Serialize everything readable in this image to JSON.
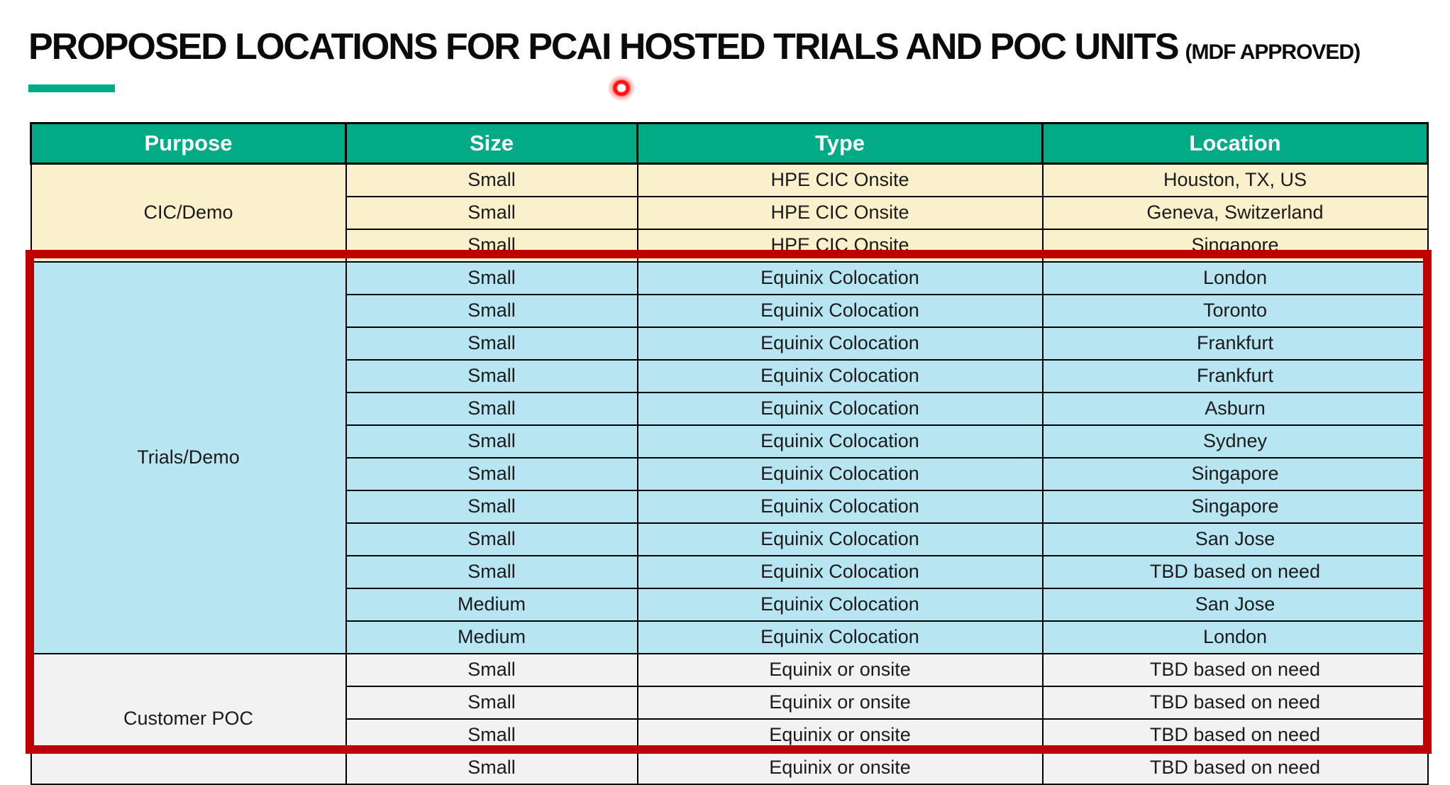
{
  "page": {
    "title": "PROPOSED LOCATIONS FOR PCAI HOSTED TRIALS AND POC UNITS",
    "title_suffix": "(MDF APPROVED)"
  },
  "colors": {
    "accent_green": "#00AB85",
    "header_bg": "#00AB85",
    "header_text": "#FFFFFF",
    "cic_demo_bg": "#FBF0CC",
    "trials_demo_bg": "#B8E5F2",
    "customer_poc_bg": "#F2F2F2",
    "highlight_border": "#C00000",
    "laser_dot": "#FF1212"
  },
  "table": {
    "headers": [
      "Purpose",
      "Size",
      "Type",
      "Location"
    ],
    "groups": [
      {
        "purpose": "CIC/Demo",
        "bg": "#FBF0CC",
        "highlighted": false,
        "rows": [
          {
            "size": "Small",
            "type": "HPE CIC Onsite",
            "location": "Houston, TX, US"
          },
          {
            "size": "Small",
            "type": "HPE CIC Onsite",
            "location": "Geneva, Switzerland"
          },
          {
            "size": "Small",
            "type": "HPE CIC Onsite",
            "location": "Singapore"
          }
        ]
      },
      {
        "purpose": "Trials/Demo",
        "bg": "#B8E5F2",
        "highlighted": true,
        "rows": [
          {
            "size": "Small",
            "type": "Equinix Colocation",
            "location": "London"
          },
          {
            "size": "Small",
            "type": "Equinix Colocation",
            "location": "Toronto"
          },
          {
            "size": "Small",
            "type": "Equinix Colocation",
            "location": "Frankfurt"
          },
          {
            "size": "Small",
            "type": "Equinix Colocation",
            "location": "Frankfurt"
          },
          {
            "size": "Small",
            "type": "Equinix Colocation",
            "location": "Asburn"
          },
          {
            "size": "Small",
            "type": "Equinix Colocation",
            "location": "Sydney"
          },
          {
            "size": "Small",
            "type": "Equinix Colocation",
            "location": "Singapore"
          },
          {
            "size": "Small",
            "type": "Equinix Colocation",
            "location": "Singapore"
          },
          {
            "size": "Small",
            "type": "Equinix Colocation",
            "location": "San Jose"
          },
          {
            "size": "Small",
            "type": "Equinix Colocation",
            "location": "TBD based on need"
          },
          {
            "size": "Medium",
            "type": "Equinix Colocation",
            "location": "San Jose"
          },
          {
            "size": "Medium",
            "type": "Equinix Colocation",
            "location": "London"
          }
        ]
      },
      {
        "purpose": "Customer POC",
        "bg": "#F2F2F2",
        "highlighted": true,
        "rows": [
          {
            "size": "Small",
            "type": "Equinix or onsite",
            "location": "TBD based on need"
          },
          {
            "size": "Small",
            "type": "Equinix or onsite",
            "location": "TBD based on need"
          },
          {
            "size": "Small",
            "type": "Equinix or onsite",
            "location": "TBD based on need"
          },
          {
            "size": "Small",
            "type": "Equinix or onsite",
            "location": "TBD based on need"
          }
        ]
      }
    ]
  }
}
